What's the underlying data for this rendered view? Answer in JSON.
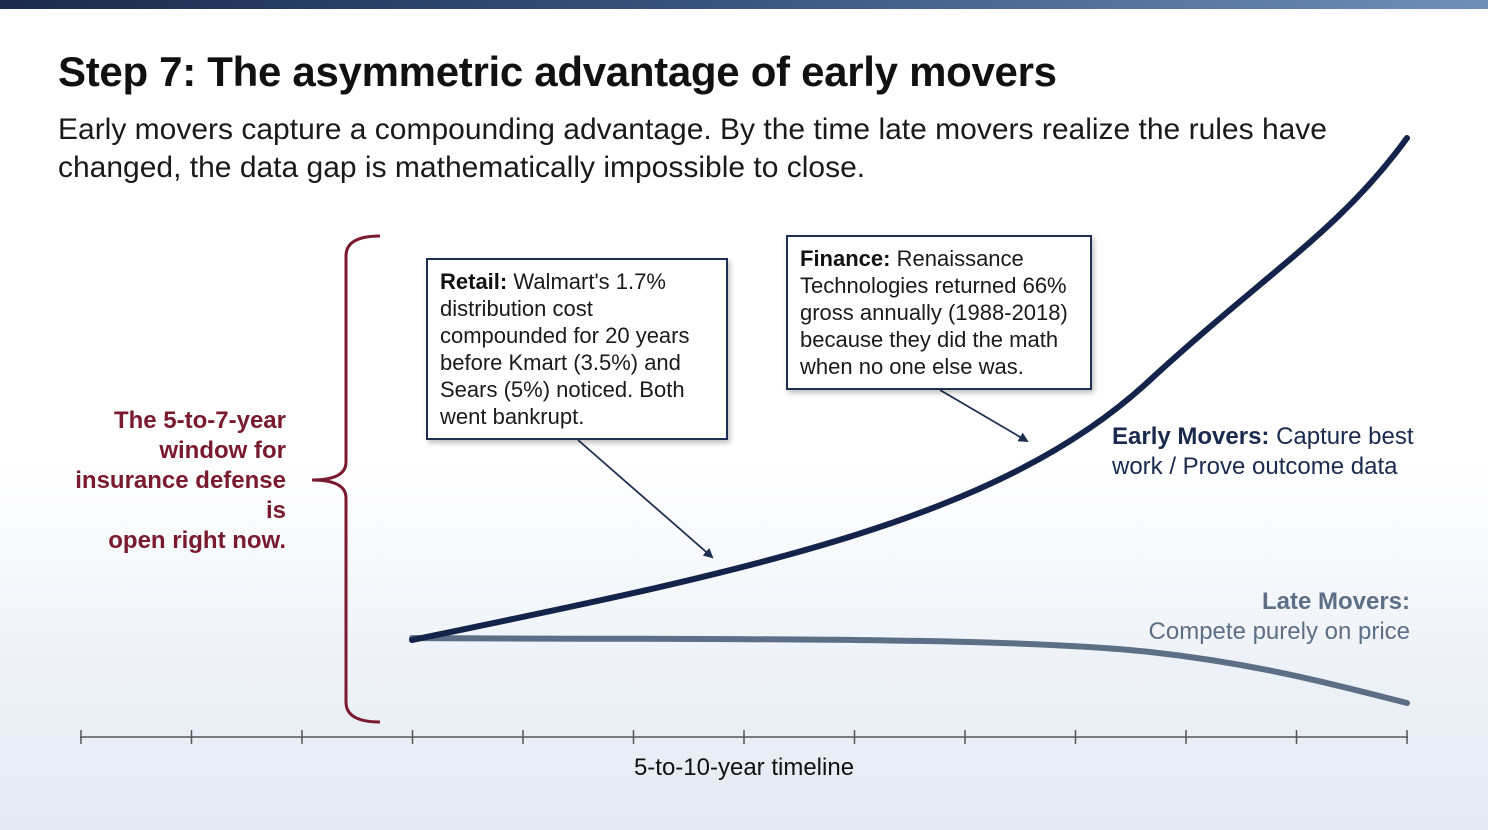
{
  "slide": {
    "title": "Step 7: The asymmetric advantage of early movers",
    "subtitle": "Early movers capture a compounding advantage. By the time late movers realize the rules have changed, the data gap is mathematically impossible to close."
  },
  "bracket_label": {
    "line1": "The 5-to-7-year",
    "line2": "window for",
    "line3": "insurance defense",
    "line4": "is",
    "line5": "open right now.",
    "color": "#7a1a2e"
  },
  "callouts": {
    "retail": {
      "heading": "Retail:",
      "body": "Walmart's 1.7% distribution cost compounded for 20 years before Kmart (3.5%) and Sears (5%) noticed. Both went bankrupt."
    },
    "finance": {
      "heading": "Finance:",
      "body": "Renaissance Technologies returned 66% gross annually (1988-2018) because they did the math when no one else was."
    }
  },
  "curves": {
    "early": {
      "name": "Early Movers:",
      "description_line1": "Capture best",
      "description_line2": "work / Prove outcome data",
      "color": "#14234a"
    },
    "late": {
      "name": "Late Movers:",
      "description": "Compete purely on price",
      "color": "#5d6f87"
    }
  },
  "axis": {
    "label": "5-to-10-year timeline",
    "tick_count": 13
  }
}
